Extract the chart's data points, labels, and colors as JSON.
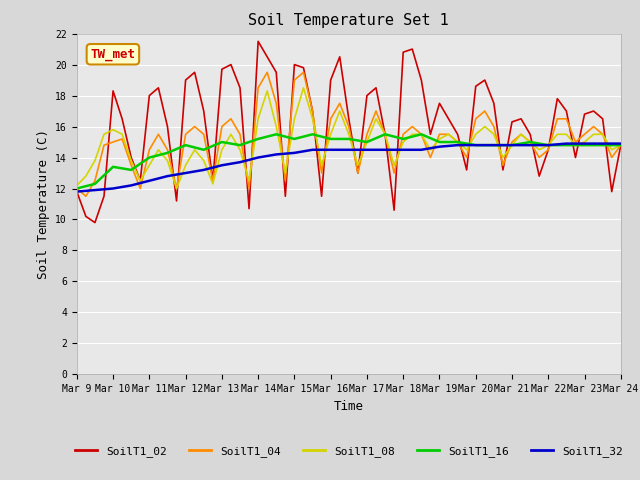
{
  "title": "Soil Temperature Set 1",
  "xlabel": "Time",
  "ylabel": "Soil Temperature (C)",
  "ylim": [
    0,
    22
  ],
  "background_color": "#d8d8d8",
  "plot_bg_color": "#e8e8e8",
  "annotation_text": "TW_met",
  "annotation_color": "#cc0000",
  "annotation_bg": "#ffffcc",
  "annotation_border": "#cc8800",
  "series": [
    {
      "label": "SoilT1_02",
      "color": "#cc0000",
      "linewidth": 1.2,
      "x": [
        9.0,
        9.25,
        9.5,
        9.75,
        10.0,
        10.25,
        10.5,
        10.75,
        11.0,
        11.25,
        11.5,
        11.75,
        12.0,
        12.25,
        12.5,
        12.75,
        13.0,
        13.25,
        13.5,
        13.75,
        14.0,
        14.25,
        14.5,
        14.75,
        15.0,
        15.25,
        15.5,
        15.75,
        16.0,
        16.25,
        16.5,
        16.75,
        17.0,
        17.25,
        17.5,
        17.75,
        18.0,
        18.25,
        18.5,
        18.75,
        19.0,
        19.25,
        19.5,
        19.75,
        20.0,
        20.25,
        20.5,
        20.75,
        21.0,
        21.25,
        21.5,
        21.75,
        22.0,
        22.25,
        22.5,
        22.75,
        23.0,
        23.25,
        23.5,
        23.75,
        24.0
      ],
      "y": [
        11.8,
        10.2,
        9.8,
        11.5,
        18.3,
        16.5,
        14.0,
        12.5,
        18.0,
        18.5,
        16.0,
        11.2,
        19.0,
        19.5,
        17.0,
        12.5,
        19.7,
        20.0,
        18.5,
        10.7,
        21.5,
        20.5,
        19.5,
        11.5,
        20.0,
        19.8,
        17.0,
        11.5,
        19.0,
        20.5,
        16.5,
        13.0,
        18.0,
        18.5,
        15.5,
        10.6,
        20.8,
        21.0,
        19.0,
        15.5,
        17.5,
        16.5,
        15.5,
        13.2,
        18.6,
        19.0,
        17.5,
        13.2,
        16.3,
        16.5,
        15.5,
        12.8,
        14.5,
        17.8,
        17.0,
        14.0,
        16.8,
        17.0,
        16.5,
        11.8,
        14.8
      ]
    },
    {
      "label": "SoilT1_04",
      "color": "#ff8c00",
      "linewidth": 1.2,
      "x": [
        9.0,
        9.25,
        9.5,
        9.75,
        10.0,
        10.25,
        10.5,
        10.75,
        11.0,
        11.25,
        11.5,
        11.75,
        12.0,
        12.25,
        12.5,
        12.75,
        13.0,
        13.25,
        13.5,
        13.75,
        14.0,
        14.25,
        14.5,
        14.75,
        15.0,
        15.25,
        15.5,
        15.75,
        16.0,
        16.25,
        16.5,
        16.75,
        17.0,
        17.25,
        17.5,
        17.75,
        18.0,
        18.25,
        18.5,
        18.75,
        19.0,
        19.25,
        19.5,
        19.75,
        20.0,
        20.25,
        20.5,
        20.75,
        21.0,
        21.25,
        21.5,
        21.75,
        22.0,
        22.25,
        22.5,
        22.75,
        23.0,
        23.25,
        23.5,
        23.75,
        24.0
      ],
      "y": [
        12.0,
        11.5,
        12.5,
        14.8,
        15.0,
        15.2,
        13.5,
        12.0,
        14.5,
        15.5,
        14.5,
        12.0,
        15.5,
        16.0,
        15.5,
        12.5,
        16.0,
        16.5,
        15.5,
        12.0,
        18.5,
        19.5,
        17.5,
        12.5,
        19.0,
        19.5,
        17.0,
        13.0,
        16.5,
        17.5,
        16.0,
        13.0,
        15.5,
        17.0,
        15.5,
        13.0,
        15.5,
        16.0,
        15.5,
        14.0,
        15.5,
        15.5,
        15.0,
        14.0,
        16.5,
        17.0,
        16.0,
        13.5,
        15.0,
        15.5,
        15.0,
        14.0,
        14.5,
        16.5,
        16.5,
        15.0,
        15.5,
        16.0,
        15.5,
        14.0,
        14.8
      ]
    },
    {
      "label": "SoilT1_08",
      "color": "#d4d400",
      "linewidth": 1.2,
      "x": [
        9.0,
        9.25,
        9.5,
        9.75,
        10.0,
        10.25,
        10.5,
        10.75,
        11.0,
        11.25,
        11.5,
        11.75,
        12.0,
        12.25,
        12.5,
        12.75,
        13.0,
        13.25,
        13.5,
        13.75,
        14.0,
        14.25,
        14.5,
        14.75,
        15.0,
        15.25,
        15.5,
        15.75,
        16.0,
        16.25,
        16.5,
        16.75,
        17.0,
        17.25,
        17.5,
        17.75,
        18.0,
        18.25,
        18.5,
        18.75,
        19.0,
        19.25,
        19.5,
        19.75,
        20.0,
        20.25,
        20.5,
        20.75,
        21.0,
        21.25,
        21.5,
        21.75,
        22.0,
        22.25,
        22.5,
        22.75,
        23.0,
        23.25,
        23.5,
        23.75,
        24.0
      ],
      "y": [
        12.2,
        12.8,
        13.8,
        15.5,
        15.8,
        15.5,
        13.8,
        12.5,
        13.5,
        14.5,
        13.8,
        12.0,
        13.5,
        14.5,
        13.8,
        12.3,
        14.5,
        15.5,
        14.5,
        12.5,
        16.5,
        18.3,
        16.0,
        13.0,
        16.5,
        18.5,
        16.5,
        13.5,
        15.5,
        17.0,
        15.5,
        13.5,
        15.0,
        16.5,
        15.5,
        13.5,
        15.0,
        15.5,
        15.5,
        14.5,
        15.2,
        15.5,
        15.0,
        14.5,
        15.5,
        16.0,
        15.5,
        14.0,
        14.8,
        15.5,
        15.0,
        14.5,
        14.8,
        15.5,
        15.5,
        14.8,
        15.0,
        15.5,
        15.5,
        14.5,
        14.8
      ]
    },
    {
      "label": "SoilT1_16",
      "color": "#00cc00",
      "linewidth": 1.8,
      "x": [
        9.0,
        9.5,
        10.0,
        10.5,
        11.0,
        11.5,
        12.0,
        12.5,
        13.0,
        13.5,
        14.0,
        14.5,
        15.0,
        15.5,
        16.0,
        16.5,
        17.0,
        17.5,
        18.0,
        18.5,
        19.0,
        19.5,
        20.0,
        20.5,
        21.0,
        21.5,
        22.0,
        22.5,
        23.0,
        23.5,
        24.0
      ],
      "y": [
        12.0,
        12.3,
        13.4,
        13.2,
        14.0,
        14.3,
        14.8,
        14.5,
        15.0,
        14.8,
        15.2,
        15.5,
        15.2,
        15.5,
        15.2,
        15.2,
        15.0,
        15.5,
        15.2,
        15.5,
        15.0,
        15.0,
        14.8,
        14.8,
        14.8,
        15.0,
        14.8,
        14.8,
        14.8,
        14.8,
        14.8
      ]
    },
    {
      "label": "SoilT1_32",
      "color": "#0000cc",
      "linewidth": 1.8,
      "x": [
        9.0,
        9.5,
        10.0,
        10.5,
        11.0,
        11.5,
        12.0,
        12.5,
        13.0,
        13.5,
        14.0,
        14.5,
        15.0,
        15.5,
        16.0,
        16.5,
        17.0,
        17.5,
        18.0,
        18.5,
        19.0,
        19.5,
        20.0,
        20.5,
        21.0,
        21.5,
        22.0,
        22.5,
        23.0,
        23.5,
        24.0
      ],
      "y": [
        11.8,
        11.9,
        12.0,
        12.2,
        12.5,
        12.8,
        13.0,
        13.2,
        13.5,
        13.7,
        14.0,
        14.2,
        14.3,
        14.5,
        14.5,
        14.5,
        14.5,
        14.5,
        14.5,
        14.5,
        14.7,
        14.8,
        14.8,
        14.8,
        14.8,
        14.8,
        14.8,
        14.9,
        14.9,
        14.9,
        14.9
      ]
    }
  ],
  "xticks": [
    9,
    10,
    11,
    12,
    13,
    14,
    15,
    16,
    17,
    18,
    19,
    20,
    21,
    22,
    23,
    24
  ],
  "xtick_labels": [
    "Mar 9",
    "Mar 10",
    "Mar 11",
    "Mar 12",
    "Mar 13",
    "Mar 14",
    "Mar 15",
    "Mar 16",
    "Mar 17",
    "Mar 18",
    "Mar 19",
    "Mar 20",
    "Mar 21",
    "Mar 22",
    "Mar 23",
    "Mar 24"
  ],
  "yticks": [
    0,
    2,
    4,
    6,
    8,
    10,
    12,
    14,
    16,
    18,
    20,
    22
  ],
  "grid_color": "#ffffff",
  "title_fontsize": 11,
  "axis_fontsize": 9,
  "tick_fontsize": 7,
  "legend_fontsize": 8
}
